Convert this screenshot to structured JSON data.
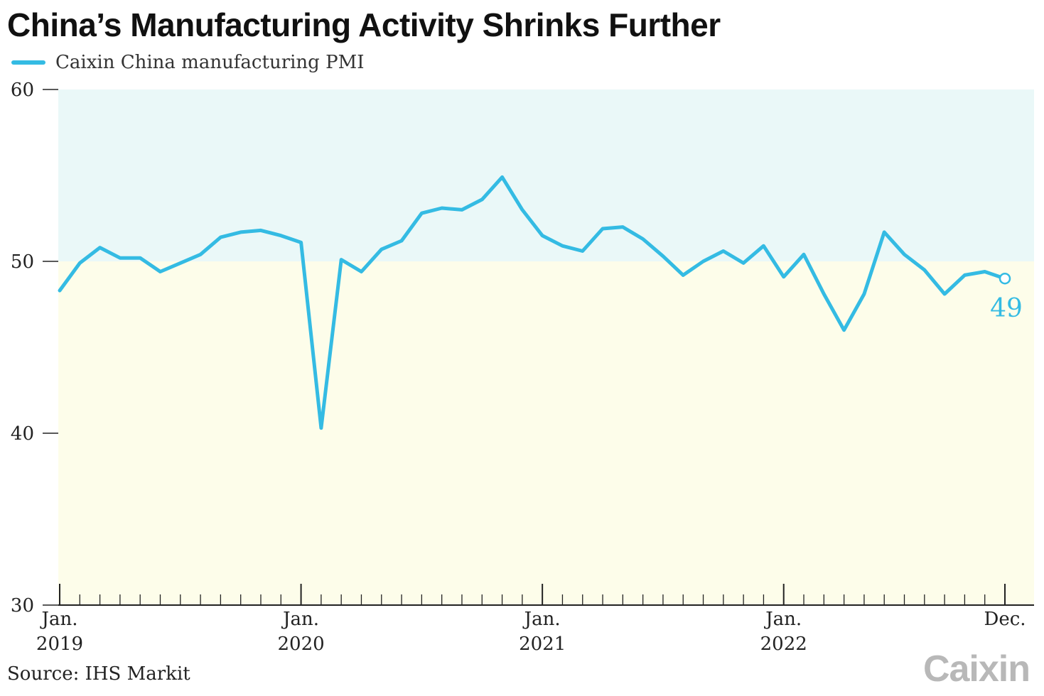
{
  "chart_data": {
    "type": "line",
    "title": "China’s Manufacturing Activity Shrinks Further",
    "xlabel": "",
    "ylabel": "",
    "ylim": [
      30,
      60
    ],
    "y_ticks": [
      30,
      40,
      50,
      60
    ],
    "x_tick_labels": [
      {
        "month": "Jan.",
        "year": "2019",
        "index": 0
      },
      {
        "month": "Jan.",
        "year": "2020",
        "index": 12
      },
      {
        "month": "Jan.",
        "year": "2021",
        "index": 24
      },
      {
        "month": "Jan.",
        "year": "2022",
        "index": 36
      },
      {
        "month": "Dec.",
        "year": "",
        "index": 47
      }
    ],
    "shaded_bands": [
      {
        "from": 50,
        "to": 60,
        "color": "#eaf8f8"
      },
      {
        "from": 30,
        "to": 50,
        "color": "#fdfdea"
      }
    ],
    "series": [
      {
        "name": "Caixin China manufacturing PMI",
        "color": "#34bbe3",
        "x": [
          "2019-01",
          "2019-02",
          "2019-03",
          "2019-04",
          "2019-05",
          "2019-06",
          "2019-07",
          "2019-08",
          "2019-09",
          "2019-10",
          "2019-11",
          "2019-12",
          "2020-01",
          "2020-02",
          "2020-03",
          "2020-04",
          "2020-05",
          "2020-06",
          "2020-07",
          "2020-08",
          "2020-09",
          "2020-10",
          "2020-11",
          "2020-12",
          "2021-01",
          "2021-02",
          "2021-03",
          "2021-04",
          "2021-05",
          "2021-06",
          "2021-07",
          "2021-08",
          "2021-09",
          "2021-10",
          "2021-11",
          "2021-12",
          "2022-01",
          "2022-02",
          "2022-03",
          "2022-04",
          "2022-05",
          "2022-06",
          "2022-07",
          "2022-08",
          "2022-09",
          "2022-10",
          "2022-11",
          "2022-12"
        ],
        "values": [
          48.3,
          49.9,
          50.8,
          50.2,
          50.2,
          49.4,
          49.9,
          50.4,
          51.4,
          51.7,
          51.8,
          51.5,
          51.1,
          40.3,
          50.1,
          49.4,
          50.7,
          51.2,
          52.8,
          53.1,
          53.0,
          53.6,
          54.9,
          53.0,
          51.5,
          50.9,
          50.6,
          51.9,
          52.0,
          51.3,
          50.3,
          49.2,
          50.0,
          50.6,
          49.9,
          50.9,
          49.1,
          50.4,
          48.1,
          46.0,
          48.1,
          51.7,
          50.4,
          49.5,
          48.1,
          49.2,
          49.4,
          49.0
        ]
      }
    ],
    "end_label": "49",
    "grid": false,
    "legend_position": "top-left"
  },
  "source": "Source: IHS Markit",
  "logo": "Caixin",
  "colors": {
    "line": "#34bbe3",
    "upper_band": "#eaf8f8",
    "lower_band": "#fdfdea",
    "axis": "#222222"
  }
}
